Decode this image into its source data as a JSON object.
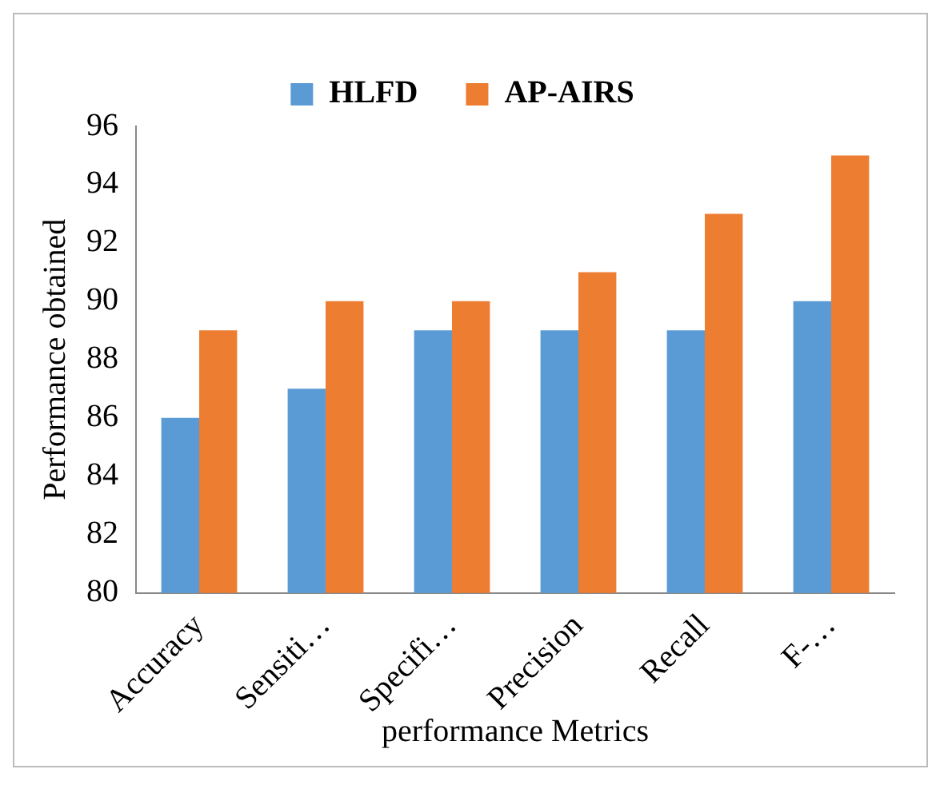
{
  "chart_data": {
    "type": "bar",
    "xlabel": "performance Metrics",
    "ylabel": "Performance obtained",
    "categories": [
      "Accuracy",
      "Sensiti…",
      "Specifi…",
      "Precision",
      "Recall",
      "F-…"
    ],
    "series": [
      {
        "name": "HLFD",
        "color": "#5b9bd5",
        "values": [
          86,
          87,
          89,
          89,
          89,
          90
        ]
      },
      {
        "name": "AP-AIRS",
        "color": "#ed7d31",
        "values": [
          89,
          90,
          90,
          91,
          93,
          95
        ]
      }
    ],
    "ylim": [
      80,
      96
    ],
    "yticks": [
      80,
      82,
      84,
      86,
      88,
      90,
      92,
      94,
      96
    ],
    "grid": false,
    "legend": "top"
  }
}
